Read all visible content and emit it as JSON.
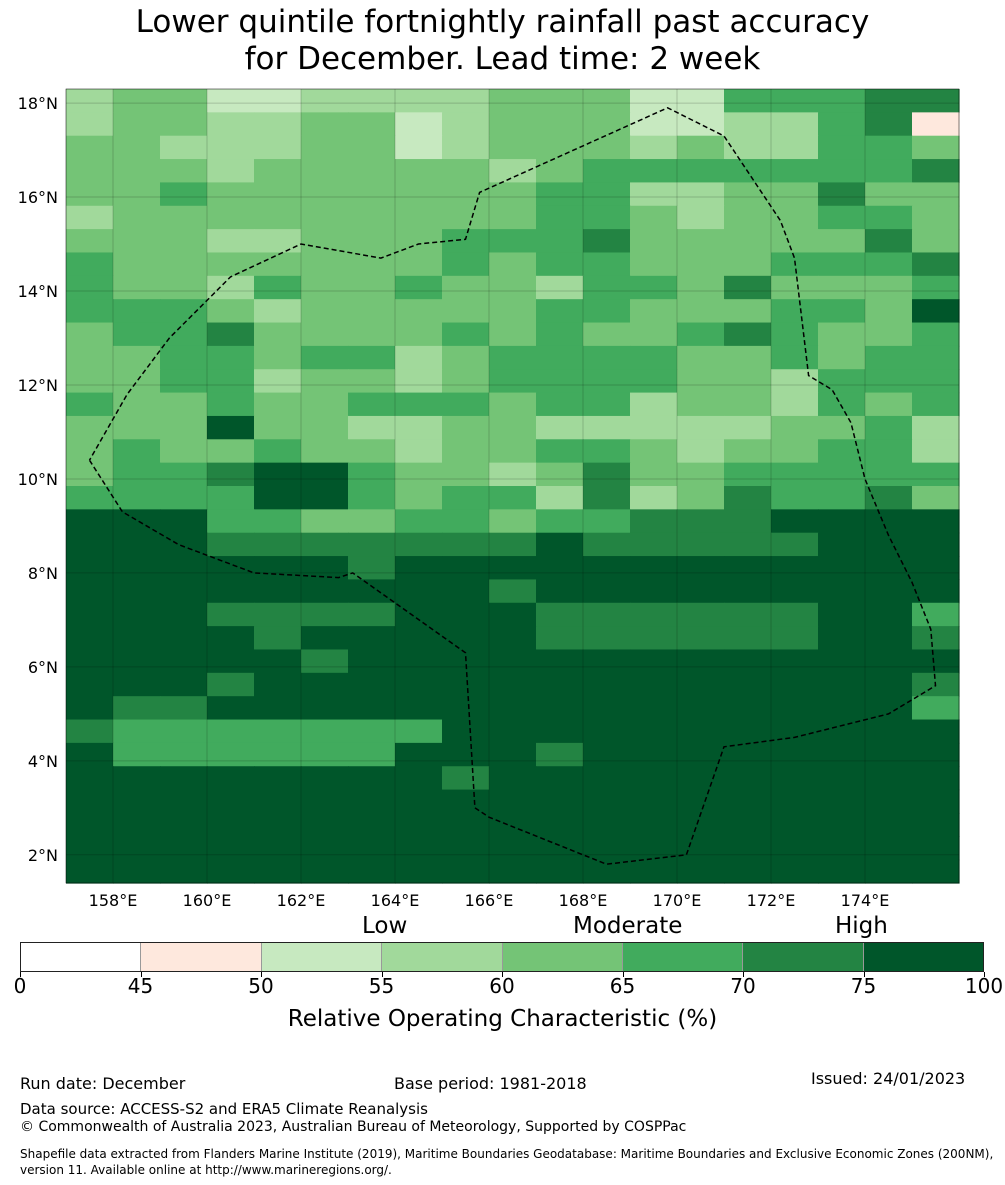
{
  "title_line1": "Lower quintile fortnightly rainfall past accuracy",
  "title_line2": "for December. Lead time: 2 week",
  "map": {
    "lat_labels": [
      "18°N",
      "16°N",
      "14°N",
      "12°N",
      "10°N",
      "8°N",
      "6°N",
      "4°N",
      "2°N"
    ],
    "lon_labels": [
      "158°E",
      "160°E",
      "162°E",
      "164°E",
      "166°E",
      "168°E",
      "170°E",
      "172°E",
      "174°E"
    ],
    "lon_range": [
      157,
      176
    ],
    "lat_range": [
      1.4,
      18.3
    ],
    "grid": "on",
    "ocean_color": "#00562a",
    "cell_rows_top_to_bottom": [
      "4335544443335522211",
      "4334433543335544216",
      "3344433543334344223",
      "3334333334322222221",
      "3323333333224433133",
      "4333333333223433223",
      "3334433322213333313",
      "2333333323223332221",
      "2334233233422313332",
      "2223433333223332230",
      "3221333323233212332",
      "3322322432222332322",
      "3322433432222334222",
      "2332332223224334232",
      "3330334433444443324",
      "3233233433223433224",
      "3221002334313322222",
      "2222002322414312213",
      "0002233223221110000",
      "0001111111011111000",
      "0000001000000000000",
      "0000000001000000000",
      "0001111000111111002",
      "0000100000111111001",
      "0000010000000000000",
      "0001000000000000001",
      "0110000000000000002",
      "1222222200000000000",
      "0222222000100000000",
      "0000000010000000000",
      "0000000000000000000",
      "0000000000000000000",
      "0000000000000000000",
      "0000000000000000000"
    ],
    "cell_level_colors": [
      "#00562a",
      "#238443",
      "#41ab5d",
      "#74c476",
      "#a1d99b",
      "#c7e9c0",
      "#fee8dd"
    ],
    "eez_boundary": [
      [
        157.5,
        10.4
      ],
      [
        158.2,
        9.3
      ],
      [
        159.4,
        8.6
      ],
      [
        161.0,
        8.0
      ],
      [
        162.8,
        7.9
      ],
      [
        163.1,
        8.0
      ],
      [
        165.5,
        6.3
      ],
      [
        165.7,
        3.0
      ],
      [
        166.0,
        2.8
      ],
      [
        168.5,
        1.8
      ],
      [
        170.2,
        2.0
      ],
      [
        171.0,
        4.3
      ],
      [
        172.5,
        4.5
      ],
      [
        174.5,
        5.0
      ],
      [
        175.5,
        5.6
      ],
      [
        175.4,
        6.8
      ],
      [
        175.0,
        7.8
      ],
      [
        174.5,
        8.8
      ],
      [
        174.0,
        10.0
      ],
      [
        173.7,
        11.2
      ],
      [
        173.3,
        11.9
      ],
      [
        172.8,
        12.2
      ],
      [
        172.5,
        14.7
      ],
      [
        172.2,
        15.5
      ],
      [
        171.0,
        17.3
      ],
      [
        169.8,
        17.9
      ],
      [
        165.8,
        16.1
      ],
      [
        165.5,
        15.1
      ],
      [
        164.5,
        15.0
      ],
      [
        163.7,
        14.7
      ],
      [
        162.0,
        15.0
      ],
      [
        160.5,
        14.3
      ],
      [
        159.2,
        13.0
      ],
      [
        158.3,
        11.8
      ],
      [
        157.5,
        10.4
      ]
    ]
  },
  "colorbar": {
    "categories": [
      "Low",
      "Moderate",
      "High"
    ],
    "bins": [
      "#ffffff",
      "#fee8dd",
      "#c7e9c0",
      "#a1d99b",
      "#74c476",
      "#41ab5d",
      "#238443",
      "#00562a"
    ],
    "ticks": [
      "0",
      "45",
      "50",
      "55",
      "60",
      "65",
      "70",
      "75",
      "100"
    ],
    "label": "Relative Operating Characteristic (%)"
  },
  "footer": {
    "run_date": "Run date: December",
    "base_period": "Base period: 1981-2018",
    "issued": "Issued: 24/01/2023",
    "data_source": "Data source: ACCESS-S2 and ERA5 Climate Reanalysis",
    "copyright": "© Commonwealth of Australia 2023, Australian Bureau of Meteorology, Supported by COSPPac",
    "shapefile": "Shapefile data extracted from Flanders Marine Institute (2019), Maritime Boundaries Geodatabase: Maritime Boundaries and Exclusive Economic Zones (200NM), version 11. Available online at http://www.marineregions.org/."
  }
}
